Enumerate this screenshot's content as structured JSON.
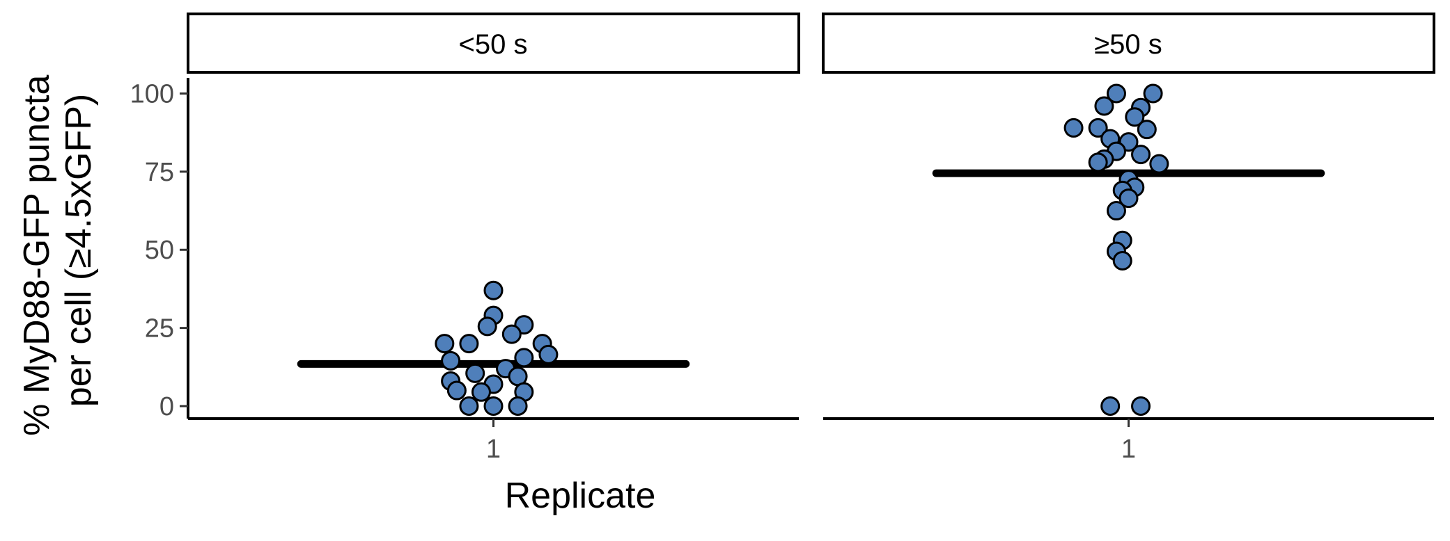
{
  "chart_data": {
    "type": "scatter",
    "xlabel": "Replicate",
    "ylabel_lines": [
      "% MyD88-GFP puncta",
      "per cell (≥4.5xGFP)"
    ],
    "ylim": [
      -4,
      105
    ],
    "yticks": [
      0,
      25,
      50,
      75,
      100
    ],
    "point_color": "#4f7fba",
    "point_edge_color": "#000000",
    "mean_line_color": "#000000",
    "grid": false,
    "facets": [
      {
        "label": "<50 s",
        "x_ticks": [
          "1"
        ],
        "mean": 13.5,
        "points": [
          {
            "dx": 0.0,
            "y": 37.0
          },
          {
            "dx": 0.0,
            "y": 29.0
          },
          {
            "dx": -0.01,
            "y": 25.5
          },
          {
            "dx": 0.05,
            "y": 26.0
          },
          {
            "dx": 0.03,
            "y": 23.0
          },
          {
            "dx": -0.08,
            "y": 20.0
          },
          {
            "dx": -0.04,
            "y": 20.0
          },
          {
            "dx": 0.08,
            "y": 20.0
          },
          {
            "dx": 0.09,
            "y": 16.5
          },
          {
            "dx": 0.05,
            "y": 15.5
          },
          {
            "dx": -0.07,
            "y": 14.5
          },
          {
            "dx": 0.02,
            "y": 12.0
          },
          {
            "dx": -0.03,
            "y": 10.5
          },
          {
            "dx": 0.04,
            "y": 9.5
          },
          {
            "dx": -0.07,
            "y": 8.0
          },
          {
            "dx": 0.0,
            "y": 7.0
          },
          {
            "dx": -0.06,
            "y": 5.0
          },
          {
            "dx": -0.02,
            "y": 4.5
          },
          {
            "dx": 0.05,
            "y": 4.5
          },
          {
            "dx": -0.04,
            "y": 0.0
          },
          {
            "dx": 0.0,
            "y": 0.0
          },
          {
            "dx": 0.04,
            "y": 0.0
          }
        ]
      },
      {
        "label": "≥50 s",
        "x_ticks": [
          "1"
        ],
        "mean": 74.5,
        "points": [
          {
            "dx": -0.02,
            "y": 100.0
          },
          {
            "dx": 0.04,
            "y": 100.0
          },
          {
            "dx": -0.04,
            "y": 96.0
          },
          {
            "dx": 0.02,
            "y": 95.5
          },
          {
            "dx": 0.01,
            "y": 92.5
          },
          {
            "dx": -0.09,
            "y": 89.0
          },
          {
            "dx": -0.05,
            "y": 89.0
          },
          {
            "dx": 0.03,
            "y": 88.5
          },
          {
            "dx": -0.03,
            "y": 85.5
          },
          {
            "dx": 0.0,
            "y": 84.5
          },
          {
            "dx": -0.02,
            "y": 81.5
          },
          {
            "dx": 0.02,
            "y": 80.5
          },
          {
            "dx": -0.04,
            "y": 79.0
          },
          {
            "dx": -0.05,
            "y": 78.0
          },
          {
            "dx": 0.05,
            "y": 77.5
          },
          {
            "dx": 0.0,
            "y": 72.5
          },
          {
            "dx": 0.01,
            "y": 70.0
          },
          {
            "dx": -0.01,
            "y": 69.0
          },
          {
            "dx": 0.0,
            "y": 66.5
          },
          {
            "dx": -0.02,
            "y": 62.5
          },
          {
            "dx": -0.01,
            "y": 53.0
          },
          {
            "dx": -0.02,
            "y": 49.5
          },
          {
            "dx": -0.01,
            "y": 46.5
          },
          {
            "dx": -0.03,
            "y": 0.0
          },
          {
            "dx": 0.02,
            "y": 0.0
          }
        ]
      }
    ]
  }
}
